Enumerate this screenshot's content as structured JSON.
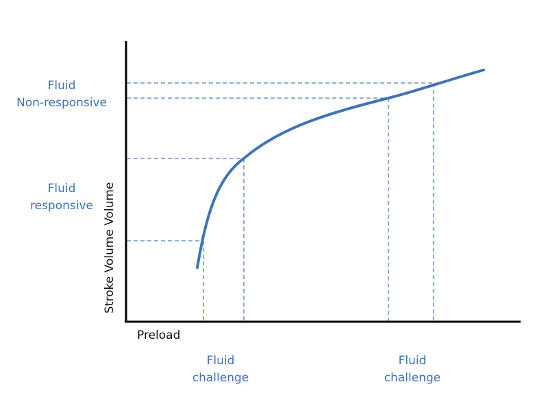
{
  "diagram": {
    "y_axis_label": "Stroke Volume Volume",
    "x_axis_label": "Preload",
    "region_labels": {
      "non_responsive": [
        "Fluid",
        "Non-responsive"
      ],
      "responsive": [
        "Fluid",
        "responsive"
      ]
    },
    "challenge_labels": {
      "left": [
        "Fluid",
        "challenge"
      ],
      "right": [
        "Fluid",
        "challenge"
      ]
    },
    "colors": {
      "curve": "#3f73b5",
      "guides": "#4a7fc0",
      "labels": "#3f73b5",
      "axes": "#000000"
    }
  }
}
